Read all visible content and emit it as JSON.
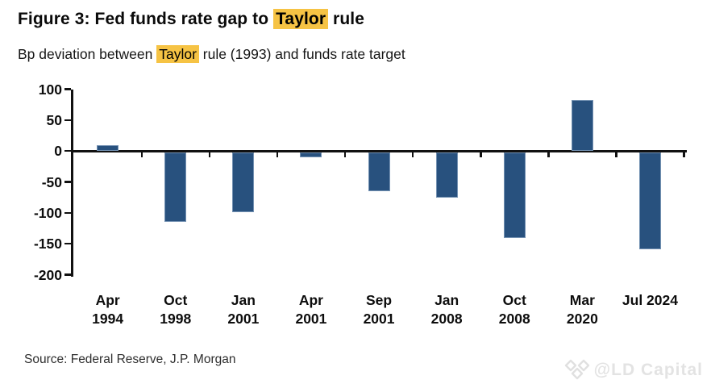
{
  "header": {
    "title_prefix": "Figure 3: Fed funds rate gap to ",
    "title_highlight": "Taylor",
    "title_suffix": " rule",
    "subtitle_prefix": "Bp deviation between ",
    "subtitle_highlight": "Taylor",
    "subtitle_suffix": " rule (1993) and funds rate target"
  },
  "chart_data": {
    "type": "bar",
    "title": "Figure 3: Fed funds rate gap to Taylor rule",
    "subtitle": "Bp deviation between Taylor rule (1993) and funds rate target",
    "categories": [
      "Apr 1994",
      "Oct 1998",
      "Jan 2001",
      "Apr 2001",
      "Sep 2001",
      "Jan 2008",
      "Oct 2008",
      "Mar 2020",
      "Jul 2024"
    ],
    "values": [
      10,
      -112,
      -97,
      -8,
      -63,
      -74,
      -139,
      82,
      -157
    ],
    "unit": "bp",
    "xlabel": "",
    "ylabel": "",
    "ylim": [
      -200,
      100
    ],
    "yticks": [
      100,
      50,
      0,
      -50,
      -100,
      -150,
      -200
    ],
    "grid": false,
    "legend": null,
    "bar_color": "#28517E",
    "highlight_color": "#F6C344"
  },
  "footer": {
    "source": "Source: Federal Reserve, J.P. Morgan",
    "watermark": "@LD Capital"
  }
}
